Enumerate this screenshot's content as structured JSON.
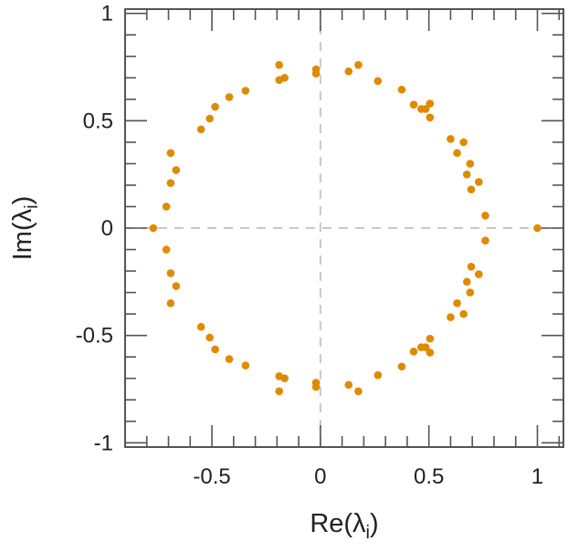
{
  "chart_data": {
    "type": "scatter",
    "title": "",
    "xlabel": "Re(λ",
    "xlabel_sub": "i",
    "xlabel_close": ")",
    "ylabel": "Im(λ",
    "ylabel_sub": "i",
    "ylabel_close": ")",
    "xlim": [
      -0.9,
      1.12
    ],
    "ylim": [
      -1.02,
      1.02
    ],
    "xticks": [
      {
        "v": -0.5,
        "label": "-0.5"
      },
      {
        "v": 0,
        "label": "0"
      },
      {
        "v": 0.5,
        "label": "0.5"
      },
      {
        "v": 1,
        "label": "1"
      }
    ],
    "yticks": [
      {
        "v": 1,
        "label": "1"
      },
      {
        "v": 0.5,
        "label": "0.5"
      },
      {
        "v": 0,
        "label": "0"
      },
      {
        "v": -0.5,
        "label": "-0.5"
      },
      {
        "v": -1,
        "label": "-1"
      }
    ],
    "grid": false,
    "reference_lines": [
      "x=0",
      "y=0"
    ],
    "color": "#e08a00",
    "points": [
      [
        -0.77,
        0
      ],
      [
        1.0,
        0
      ],
      [
        -0.71,
        0.1
      ],
      [
        -0.69,
        0.21
      ],
      [
        -0.665,
        0.27
      ],
      [
        -0.69,
        0.35
      ],
      [
        -0.55,
        0.46
      ],
      [
        -0.51,
        0.51
      ],
      [
        -0.485,
        0.565
      ],
      [
        -0.42,
        0.61
      ],
      [
        -0.345,
        0.64
      ],
      [
        -0.19,
        0.69
      ],
      [
        -0.165,
        0.7
      ],
      [
        -0.19,
        0.76
      ],
      [
        -0.02,
        0.74
      ],
      [
        -0.02,
        0.72
      ],
      [
        0.13,
        0.73
      ],
      [
        0.175,
        0.76
      ],
      [
        0.265,
        0.685
      ],
      [
        0.375,
        0.645
      ],
      [
        0.43,
        0.575
      ],
      [
        0.465,
        0.555
      ],
      [
        0.485,
        0.555
      ],
      [
        0.505,
        0.58
      ],
      [
        0.505,
        0.515
      ],
      [
        0.6,
        0.415
      ],
      [
        0.63,
        0.35
      ],
      [
        0.66,
        0.4
      ],
      [
        0.69,
        0.3
      ],
      [
        0.675,
        0.25
      ],
      [
        0.73,
        0.215
      ],
      [
        0.695,
        0.18
      ],
      [
        0.76,
        0.058
      ],
      [
        -0.71,
        -0.1
      ],
      [
        -0.69,
        -0.21
      ],
      [
        -0.665,
        -0.27
      ],
      [
        -0.69,
        -0.35
      ],
      [
        -0.55,
        -0.46
      ],
      [
        -0.51,
        -0.51
      ],
      [
        -0.485,
        -0.565
      ],
      [
        -0.42,
        -0.61
      ],
      [
        -0.345,
        -0.64
      ],
      [
        -0.19,
        -0.69
      ],
      [
        -0.165,
        -0.7
      ],
      [
        -0.19,
        -0.76
      ],
      [
        -0.02,
        -0.74
      ],
      [
        -0.02,
        -0.72
      ],
      [
        0.13,
        -0.73
      ],
      [
        0.175,
        -0.76
      ],
      [
        0.265,
        -0.685
      ],
      [
        0.375,
        -0.645
      ],
      [
        0.43,
        -0.575
      ],
      [
        0.465,
        -0.555
      ],
      [
        0.485,
        -0.555
      ],
      [
        0.505,
        -0.58
      ],
      [
        0.505,
        -0.515
      ],
      [
        0.6,
        -0.415
      ],
      [
        0.63,
        -0.35
      ],
      [
        0.66,
        -0.4
      ],
      [
        0.69,
        -0.3
      ],
      [
        0.675,
        -0.25
      ],
      [
        0.73,
        -0.215
      ],
      [
        0.695,
        -0.18
      ],
      [
        0.76,
        -0.058
      ]
    ]
  }
}
